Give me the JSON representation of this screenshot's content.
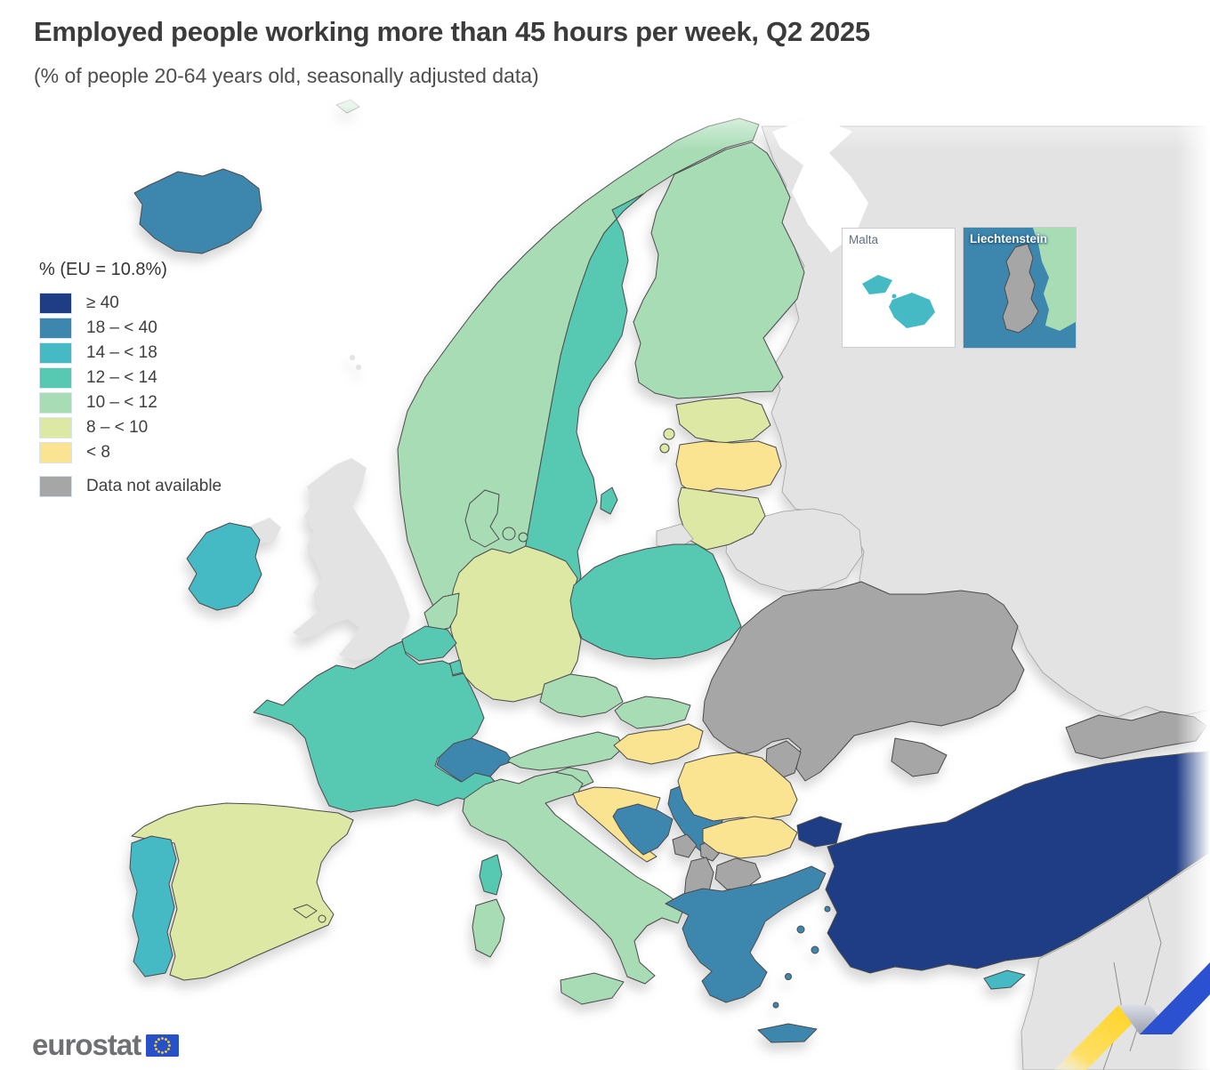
{
  "page": {
    "title": "Employed people working more than 45 hours per week, Q2 2025",
    "subtitle": "(% of people 20-64 years old, seasonally adjusted data)"
  },
  "legend": {
    "title": "% (EU = 10.8%)",
    "eu_value": "10.8%",
    "items": [
      {
        "label": "≥ 40",
        "class": "gte40",
        "color": "#1f3d85"
      },
      {
        "label": "18 – < 40",
        "class": "c18_40",
        "color": "#3d87af"
      },
      {
        "label": "14 – < 18",
        "class": "c14_18",
        "color": "#45b9c4"
      },
      {
        "label": "12 – < 14",
        "class": "c12_14",
        "color": "#57c8b2"
      },
      {
        "label": "10 – < 12",
        "class": "c10_12",
        "color": "#a7dcb5"
      },
      {
        "label": "8 – < 10",
        "class": "c8_10",
        "color": "#dce8a4"
      },
      {
        "label": "< 8",
        "class": "lt8",
        "color": "#fbe491"
      }
    ],
    "no_data": {
      "label": "Data not available",
      "class": "no_data",
      "color": "#a6a6a6"
    }
  },
  "insets": {
    "malta": {
      "label": "Malta"
    },
    "liechtenstein": {
      "label": "Liechtenstein"
    }
  },
  "logo": {
    "text": "eurostat",
    "flag_blue": "#2750c9",
    "star_yellow": "#ffd617"
  },
  "decor": {
    "ribbon_yellow": "#ffd21a",
    "ribbon_yellow_light": "#fff3c4",
    "ribbon_blue": "#2b50d0",
    "ribbon_fold": "#b9bec9"
  },
  "map": {
    "colors": {
      "gte40": "#1f3d85",
      "c18_40": "#3d87af",
      "c14_18": "#45b9c4",
      "c12_14": "#57c8b2",
      "c10_12": "#a7dcb5",
      "c8_10": "#dce8a4",
      "lt8": "#fbe491",
      "no_data": "#a6a6a6",
      "non_eu": "#e3e3e3",
      "sea": "#ffffff",
      "border": "#4b4b4b"
    },
    "countries": [
      {
        "id": "iceland",
        "name": "Iceland",
        "class": "c18_40"
      },
      {
        "id": "norway",
        "name": "Norway",
        "class": "c10_12"
      },
      {
        "id": "sweden",
        "name": "Sweden",
        "class": "c12_14"
      },
      {
        "id": "finland",
        "name": "Finland",
        "class": "c10_12"
      },
      {
        "id": "estonia",
        "name": "Estonia",
        "class": "c8_10"
      },
      {
        "id": "latvia",
        "name": "Latvia",
        "class": "lt8"
      },
      {
        "id": "lithuania",
        "name": "Lithuania",
        "class": "c8_10"
      },
      {
        "id": "denmark",
        "name": "Denmark",
        "class": "c10_12"
      },
      {
        "id": "ireland",
        "name": "Ireland",
        "class": "c14_18"
      },
      {
        "id": "uk",
        "name": "United Kingdom",
        "class": "non_eu"
      },
      {
        "id": "netherlands",
        "name": "Netherlands",
        "class": "c10_12"
      },
      {
        "id": "belgium",
        "name": "Belgium",
        "class": "c12_14"
      },
      {
        "id": "luxembourg",
        "name": "Luxembourg",
        "class": "c12_14"
      },
      {
        "id": "germany",
        "name": "Germany",
        "class": "c8_10"
      },
      {
        "id": "poland",
        "name": "Poland",
        "class": "c12_14"
      },
      {
        "id": "czechia",
        "name": "Czechia",
        "class": "c10_12"
      },
      {
        "id": "slovakia",
        "name": "Slovakia",
        "class": "c10_12"
      },
      {
        "id": "austria",
        "name": "Austria",
        "class": "c10_12"
      },
      {
        "id": "switzerland",
        "name": "Switzerland",
        "class": "c18_40"
      },
      {
        "id": "france",
        "name": "France",
        "class": "c12_14"
      },
      {
        "id": "spain",
        "name": "Spain",
        "class": "c8_10"
      },
      {
        "id": "portugal",
        "name": "Portugal",
        "class": "c14_18"
      },
      {
        "id": "italy",
        "name": "Italy",
        "class": "c10_12"
      },
      {
        "id": "slovenia",
        "name": "Slovenia",
        "class": "c10_12"
      },
      {
        "id": "croatia",
        "name": "Croatia",
        "class": "lt8"
      },
      {
        "id": "hungary",
        "name": "Hungary",
        "class": "lt8"
      },
      {
        "id": "romania",
        "name": "Romania",
        "class": "lt8"
      },
      {
        "id": "bulgaria",
        "name": "Bulgaria",
        "class": "lt8"
      },
      {
        "id": "greece",
        "name": "Greece",
        "class": "c18_40"
      },
      {
        "id": "turkey",
        "name": "Türkiye",
        "class": "gte40"
      },
      {
        "id": "cyprus",
        "name": "Cyprus",
        "class": "c14_18"
      },
      {
        "id": "malta",
        "name": "Malta",
        "class": "c14_18"
      },
      {
        "id": "bosnia",
        "name": "Bosnia and Herzegovina",
        "class": "c18_40"
      },
      {
        "id": "serbia",
        "name": "Serbia",
        "class": "c18_40"
      },
      {
        "id": "montenegro",
        "name": "Montenegro",
        "class": "no_data"
      },
      {
        "id": "kosovo",
        "name": "Kosovo",
        "class": "no_data"
      },
      {
        "id": "north_macedonia",
        "name": "North Macedonia",
        "class": "no_data"
      },
      {
        "id": "albania",
        "name": "Albania",
        "class": "no_data"
      },
      {
        "id": "moldova",
        "name": "Moldova",
        "class": "no_data"
      },
      {
        "id": "ukraine",
        "name": "Ukraine",
        "class": "no_data"
      },
      {
        "id": "georgia",
        "name": "Georgia",
        "class": "no_data"
      },
      {
        "id": "liechtenstein",
        "name": "Liechtenstein",
        "class": "no_data"
      },
      {
        "id": "belarus",
        "name": "Belarus",
        "class": "non_eu"
      },
      {
        "id": "russia",
        "name": "Russia",
        "class": "non_eu"
      },
      {
        "id": "kaliningrad",
        "name": "Russia (Kaliningrad)",
        "class": "non_eu"
      },
      {
        "id": "caucasus_south",
        "name": "South Caucasus",
        "class": "non_eu"
      },
      {
        "id": "syria_region",
        "name": "Middle East",
        "class": "non_eu"
      }
    ]
  }
}
